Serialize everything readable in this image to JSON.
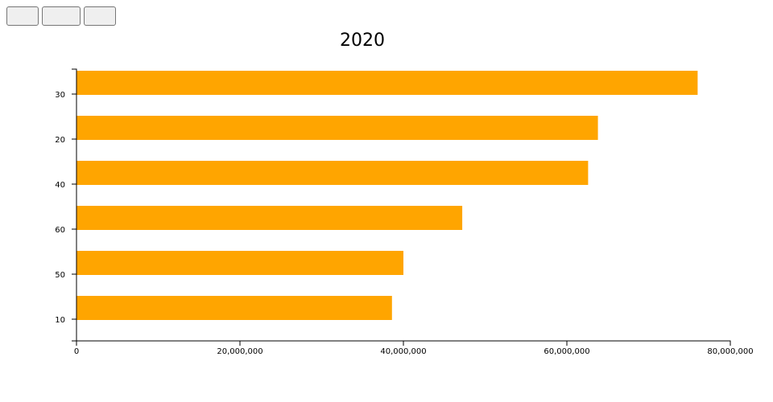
{
  "controls": {
    "buttons": [
      "",
      "",
      ""
    ]
  },
  "chart_data": {
    "type": "bar",
    "orientation": "horizontal",
    "title": "2020",
    "xlabel": "",
    "ylabel": "",
    "categories": [
      "30",
      "20",
      "40",
      "60",
      "50",
      "10"
    ],
    "values": [
      76000000,
      63800000,
      62600000,
      47200000,
      40000000,
      38600000
    ],
    "xlim": [
      0,
      80000000
    ],
    "xticks": [
      0,
      20000000,
      40000000,
      60000000,
      80000000
    ],
    "xtick_labels": [
      "0",
      "20,000,000",
      "40,000,000",
      "60,000,000",
      "80,000,000"
    ],
    "bar_color": "#ffa500",
    "grid": false,
    "legend": "none"
  }
}
